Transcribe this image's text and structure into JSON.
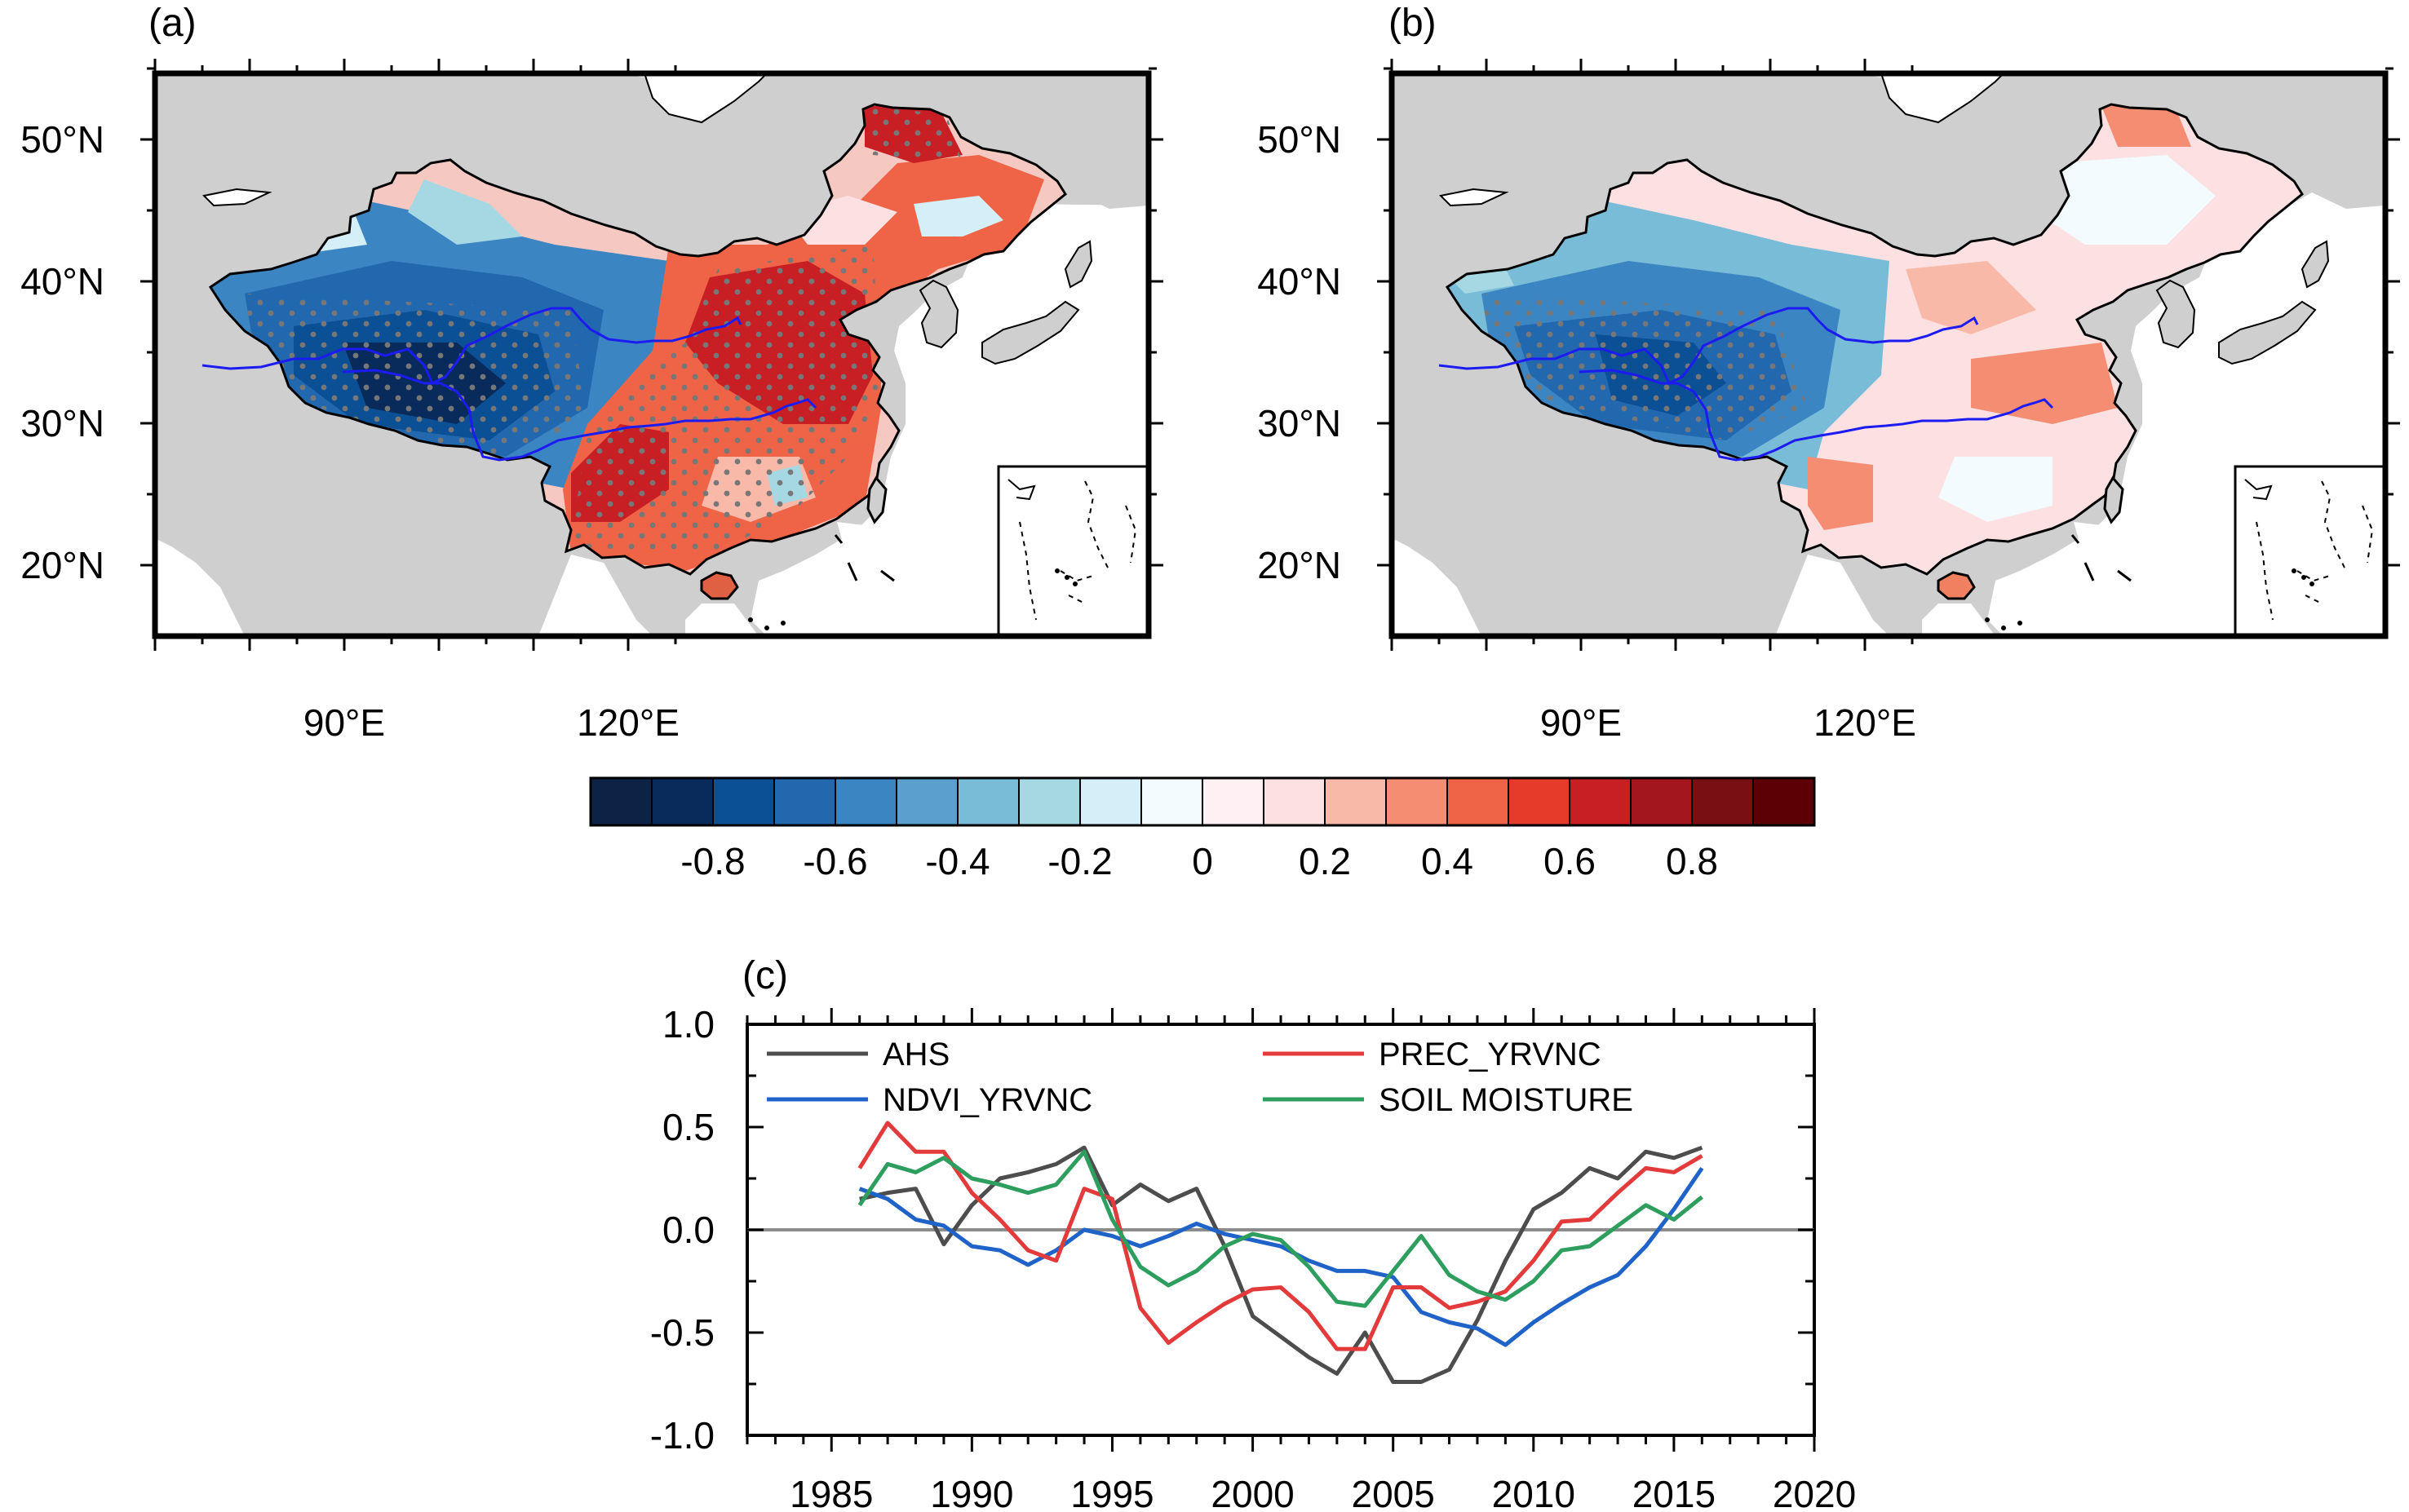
{
  "panel_a": {
    "label": "(a)"
  },
  "panel_b": {
    "label": "(b)"
  },
  "panel_c": {
    "label": "(c)"
  },
  "map_axes": {
    "lon_ticks": [
      {
        "value": 90,
        "label": "90°E"
      },
      {
        "value": 120,
        "label": "120°E"
      }
    ],
    "lat_ticks": [
      {
        "value": 50,
        "label": "50°N"
      },
      {
        "value": 40,
        "label": "40°N"
      },
      {
        "value": 30,
        "label": "30°N"
      },
      {
        "value": 20,
        "label": "20°N"
      }
    ]
  },
  "colorbar": {
    "colors": [
      "#0d2346",
      "#082b5c",
      "#0b4f94",
      "#2268ae",
      "#3b86c2",
      "#5b9fce",
      "#79bcd8",
      "#a6d8e4",
      "#d5eff8",
      "#f3fbfe",
      "#fff1f3",
      "#fde0e1",
      "#f9b9a8",
      "#f58d72",
      "#ef6446",
      "#e63b2b",
      "#c81f25",
      "#a3161d",
      "#7a0f13",
      "#5c0006"
    ],
    "tick_labels": [
      "-0.8",
      "-0.6",
      "-0.4",
      "-0.2",
      "0",
      "0.2",
      "0.4",
      "0.6",
      "0.8"
    ],
    "tick_values": [
      -0.8,
      -0.6,
      -0.4,
      -0.2,
      0,
      0.2,
      0.4,
      0.6,
      0.8
    ]
  },
  "chart_data": [
    {
      "type": "map",
      "panel": "(a)",
      "description_values": "correlation field over China; west/Tibetan Plateau negative (~-0.8), east positive (~0.6-0.8)"
    },
    {
      "type": "map",
      "panel": "(b)",
      "description_values": "correlation field over China; west negative (~-0.6), east weakly positive (~0.2-0.4)"
    },
    {
      "type": "line",
      "panel": "(c)",
      "xlim": [
        1982,
        2020
      ],
      "ylim": [
        -1.0,
        1.0
      ],
      "xticks": [
        "1985",
        "1990",
        "1995",
        "2000",
        "2005",
        "2010",
        "2015",
        "2020"
      ],
      "yticks": [
        "1.0",
        "0.5",
        "0.0",
        "-0.5",
        "-1.0"
      ],
      "legend_position": "top",
      "zero_line": true,
      "x": [
        1986,
        1987,
        1988,
        1989,
        1990,
        1991,
        1992,
        1993,
        1994,
        1995,
        1996,
        1997,
        1998,
        1999,
        2000,
        2001,
        2002,
        2003,
        2004,
        2005,
        2006,
        2007,
        2008,
        2009,
        2010,
        2011,
        2012,
        2013,
        2014,
        2015,
        2016
      ],
      "series": [
        {
          "name": "AHS",
          "color": "#4d4d4d",
          "values": [
            0.15,
            0.18,
            0.2,
            -0.07,
            0.12,
            0.25,
            0.28,
            0.32,
            0.4,
            0.12,
            0.22,
            0.14,
            0.2,
            -0.08,
            -0.42,
            -0.52,
            -0.62,
            -0.7,
            -0.5,
            -0.74,
            -0.74,
            -0.68,
            -0.44,
            -0.15,
            0.1,
            0.18,
            0.3,
            0.25,
            0.38,
            0.35,
            0.4
          ]
        },
        {
          "name": "NDVI_YRVNC",
          "color": "#1f62c8",
          "values": [
            0.2,
            0.15,
            0.05,
            0.02,
            -0.08,
            -0.1,
            -0.17,
            -0.1,
            0.0,
            -0.03,
            -0.08,
            -0.03,
            0.03,
            -0.02,
            -0.05,
            -0.08,
            -0.15,
            -0.2,
            -0.2,
            -0.23,
            -0.4,
            -0.45,
            -0.48,
            -0.56,
            -0.45,
            -0.36,
            -0.28,
            -0.22,
            -0.08,
            0.1,
            0.3
          ]
        },
        {
          "name": "PREC_YRVNC",
          "color": "#e33b3b",
          "values": [
            0.3,
            0.52,
            0.38,
            0.38,
            0.18,
            0.05,
            -0.1,
            -0.15,
            0.2,
            0.15,
            -0.38,
            -0.55,
            -0.45,
            -0.36,
            -0.29,
            -0.28,
            -0.4,
            -0.58,
            -0.58,
            -0.28,
            -0.28,
            -0.38,
            -0.35,
            -0.3,
            -0.15,
            0.04,
            0.05,
            0.18,
            0.3,
            0.28,
            0.36
          ]
        },
        {
          "name": "SOIL MOISTURE",
          "color": "#2e9e5f",
          "values": [
            0.12,
            0.32,
            0.28,
            0.35,
            0.25,
            0.22,
            0.18,
            0.22,
            0.38,
            0.05,
            -0.18,
            -0.27,
            -0.2,
            -0.08,
            -0.02,
            -0.05,
            -0.18,
            -0.35,
            -0.37,
            -0.2,
            -0.03,
            -0.22,
            -0.3,
            -0.34,
            -0.25,
            -0.1,
            -0.08,
            0.02,
            0.12,
            0.05,
            0.16
          ]
        }
      ]
    }
  ]
}
